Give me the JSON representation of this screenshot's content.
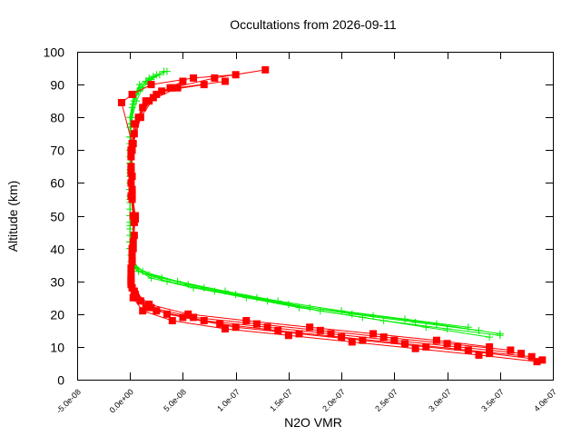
{
  "chart_data": {
    "type": "line",
    "title": "Occultations from 2026-09-11",
    "xlabel": "N2O VMR",
    "ylabel": "Altitude (km)",
    "xlim": [
      -5e-08,
      4e-07
    ],
    "ylim": [
      0,
      100
    ],
    "x_ticks": [
      -5e-08,
      0,
      5e-08,
      1e-07,
      1.5e-07,
      2e-07,
      2.5e-07,
      3e-07,
      3.5e-07,
      4e-07
    ],
    "x_tick_labels": [
      "-5.0e-08",
      "0.0e+00",
      "5.0e-08",
      "1.0e-07",
      "1.5e-07",
      "2.0e-07",
      "2.5e-07",
      "3.0e-07",
      "3.5e-07",
      "4.0e-07"
    ],
    "y_ticks": [
      0,
      10,
      20,
      30,
      40,
      50,
      60,
      70,
      80,
      90,
      100
    ],
    "y_tick_labels": [
      "0",
      "10",
      "20",
      "30",
      "40",
      "50",
      "60",
      "70",
      "80",
      "90",
      "100"
    ],
    "grid": false,
    "legend": "none",
    "series": [
      {
        "color": "#00ee00",
        "marker": "plus",
        "profiles": [
          {
            "x": [
              3.4e-07,
              2.8e-07,
              2.2e-07,
              1.6e-07,
              1.1e-07,
              6e-08,
              2e-08,
              4e-09,
              1e-09,
              0,
              0,
              0,
              0,
              0,
              0,
              1e-09,
              3e-09,
              8e-09,
              1.5e-08,
              2.5e-08,
              3.5e-08
            ],
            "y": [
              13,
              16,
              19,
              22,
              25,
              28,
              31,
              34,
              38,
              42,
              48,
              54,
              60,
              66,
              72,
              78,
              84,
              88,
              91,
              93,
              94
            ]
          },
          {
            "x": [
              3.5e-07,
              2.9e-07,
              2.3e-07,
              1.7e-07,
              1.2e-07,
              7e-08,
              3e-08,
              6e-09,
              1e-09,
              0,
              0,
              0,
              0,
              0,
              0,
              2e-09,
              6e-09,
              1.2e-08,
              2e-08,
              2.8e-08
            ],
            "y": [
              14,
              17,
              19.5,
              22,
              25,
              28,
              31,
              34,
              38,
              44,
              50,
              56,
              62,
              68,
              74,
              80,
              85,
              89,
              91.5,
              93
            ]
          },
          {
            "x": [
              3.3e-07,
              2.7e-07,
              2.1e-07,
              1.5e-07,
              1e-07,
              5.5e-08,
              1.8e-08,
              3e-09,
              0,
              0,
              0,
              0,
              0,
              0,
              1e-09,
              4e-09,
              1e-08,
              1.8e-08
            ],
            "y": [
              15,
              17.5,
              20,
              23,
              26,
              29,
              32,
              35,
              40,
              46,
              52,
              58,
              64,
              70,
              78,
              85,
              89,
              92
            ]
          },
          {
            "x": [
              3.2e-07,
              2.6e-07,
              2e-07,
              1.4e-07,
              9e-08,
              4.5e-08,
              1.2e-08,
              2e-09,
              0,
              0,
              0,
              0,
              0,
              0,
              2e-09,
              7e-09,
              1.6e-08,
              3.2e-08
            ],
            "y": [
              16,
              18.5,
              21,
              24,
              27,
              30,
              33,
              36,
              40,
              47,
              55,
              63,
              70,
              77,
              83,
              88,
              91,
              94
            ]
          },
          {
            "x": [
              3.5e-07,
              3e-07,
              2.4e-07,
              1.8e-07,
              1.3e-07,
              8e-08,
              3.5e-08,
              8e-09,
              1e-09,
              0,
              0,
              0,
              0,
              0,
              0,
              3e-09,
              9e-09,
              2.2e-08
            ],
            "y": [
              13.5,
              15.5,
              18,
              21,
              24,
              27,
              30,
              33,
              36,
              42,
              50,
              58,
              66,
              74,
              80,
              86,
              90,
              92.5
            ]
          }
        ]
      },
      {
        "color": "#ff0000",
        "marker": "filled-square",
        "profiles": [
          {
            "x": [
              3.9e-07,
              3.4e-07,
              2.8e-07,
              2.2e-07,
              1.6e-07,
              1e-07,
              5e-08,
              1.5e-08,
              4e-09,
              1e-09,
              2e-09,
              4e-09,
              3e-09,
              1e-09,
              2e-09,
              1e-09,
              4e-09,
              1.5e-08,
              4e-08,
              8e-08,
              1.28e-07
            ],
            "y": [
              6,
              8,
              10,
              12,
              14,
              16,
              19,
              22,
              26,
              30,
              36,
              44,
              50,
              56,
              62,
              70,
              78,
              85,
              89,
              92,
              94.5
            ]
          },
          {
            "x": [
              3.8e-07,
              3.2e-07,
              2.6e-07,
              2e-07,
              1.4e-07,
              8.5e-08,
              3.5e-08,
              1e-08,
              2e-09,
              1e-09,
              3e-09,
              5e-09,
              2e-09,
              1e-09,
              3e-09,
              1e-08,
              2.5e-08,
              5e-08
            ],
            "y": [
              7,
              9,
              11,
              13,
              15,
              17,
              20,
              24,
              28,
              34,
              42,
              49,
              56,
              64,
              72,
              80,
              87,
              91
            ]
          },
          {
            "x": [
              3.7e-07,
              3.1e-07,
              2.5e-07,
              1.9e-07,
              1.3e-07,
              7e-08,
              2.5e-08,
              6e-09,
              1e-09,
              2e-09,
              4e-09,
              2e-09,
              1e-09,
              2e-09,
              -8e-09,
              2e-09,
              2e-08,
              6e-08,
              1e-07
            ],
            "y": [
              8,
              10,
              12,
              14,
              16,
              18,
              21,
              25,
              29,
              36,
              48,
              55,
              63,
              72,
              84.5,
              87,
              90,
              92,
              93
            ]
          },
          {
            "x": [
              3.6e-07,
              3e-07,
              2.4e-07,
              1.8e-07,
              1.2e-07,
              6e-08,
              2e-08,
              5e-09,
              1e-09,
              2e-09,
              5e-09,
              2e-09,
              1e-09,
              4e-09,
              1.2e-08,
              3e-08,
              7e-08
            ],
            "y": [
              9,
              11,
              13,
              15,
              17,
              19,
              22,
              26,
              30,
              38,
              50,
              57,
              65,
              75,
              83,
              88,
              90
            ]
          },
          {
            "x": [
              3.85e-07,
              3.3e-07,
              2.7e-07,
              2.1e-07,
              1.5e-07,
              9e-08,
              4e-08,
              1.2e-08,
              3e-09,
              1e-09,
              3e-09,
              4e-09,
              2e-09,
              1e-09,
              5e-09,
              1.8e-08,
              4.5e-08,
              9e-08
            ],
            "y": [
              5.5,
              7.5,
              9.5,
              11.5,
              13.5,
              15.5,
              18,
              21,
              25,
              31,
              40,
              48,
              58,
              68,
              78,
              85,
              89,
              91
            ]
          },
          {
            "x": [
              3.4e-07,
              2.9e-07,
              2.3e-07,
              1.7e-07,
              1.1e-07,
              5.5e-08,
              1.8e-08,
              4e-09,
              1e-09,
              2e-09,
              3e-09,
              1e-09,
              2e-09,
              8e-09,
              2.2e-08,
              3.8e-08
            ],
            "y": [
              10,
              12,
              14,
              16,
              18,
              20,
              23,
              27,
              32,
              40,
              50,
              60,
              70,
              80,
              86,
              89
            ]
          }
        ]
      }
    ]
  }
}
